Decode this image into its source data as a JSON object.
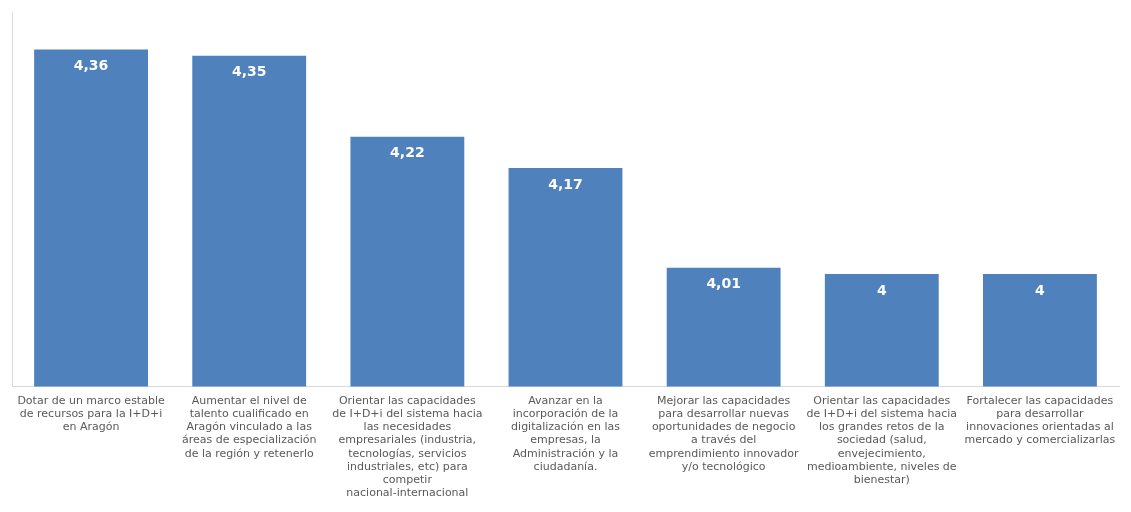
{
  "chart_data": {
    "type": "bar",
    "categories": [
      "Dotar de un marco estable de recursos para la I+D+i en Aragón",
      "Aumentar el nivel de talento cualificado en Aragón vinculado a las áreas de especialización de la región y retenerlo",
      "Orientar las capacidades de I+D+i del sistema hacia las necesidades empresariales (industria, tecnologías, servicios industriales, etc) para competir nacional-internacional",
      "Avanzar en la incorporación de la digitalización en las empresas, la Administración y la ciudadanía.",
      "Mejorar las capacidades para desarrollar nuevas oportunidades de negocio a través del emprendimiento innovador y/o tecnológico",
      "Orientar las capacidades de I+D+i del sistema hacia los grandes retos de la sociedad (salud, envejecimiento, medioambiente, niveles de bienestar)",
      "Fortalecer las capacidades para desarrollar innovaciones orientadas al mercado y comercializarlas"
    ],
    "values": [
      4.36,
      4.35,
      4.22,
      4.17,
      4.01,
      4,
      4
    ],
    "value_labels": [
      "4,36",
      "4,35",
      "4,22",
      "4,17",
      "4,01",
      "4",
      "4"
    ],
    "color": "#4f81bd",
    "ylim": [
      3.82,
      4.42
    ],
    "tick_labels": "x",
    "legend": false
  }
}
